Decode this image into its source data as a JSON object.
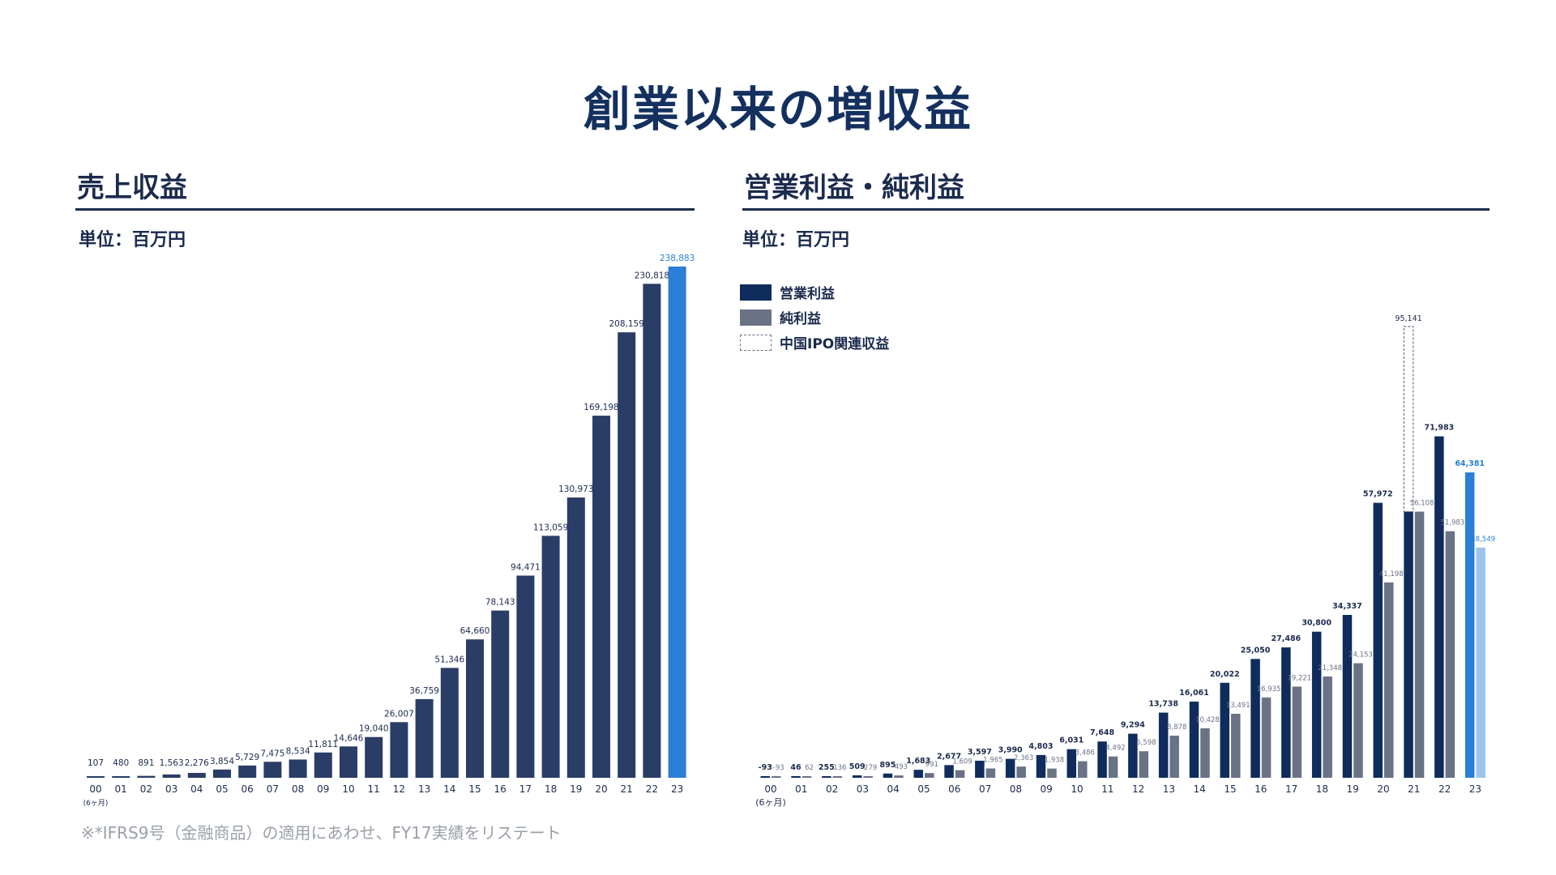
{
  "title": "創業以来の増収益",
  "left_panel": {
    "title": "売上収益",
    "unit": "単位：百万円"
  },
  "right_panel": {
    "title": "営業利益・純利益",
    "unit": "単位：百万円"
  },
  "legend": [
    {
      "label": "営業利益",
      "color": "#0f2c5c",
      "style": "solid"
    },
    {
      "label": "純利益",
      "color": "#6a7286",
      "style": "solid"
    },
    {
      "label": "中国IPO関連収益",
      "color": "#6a7286",
      "style": "dashed"
    }
  ],
  "footnote": "※*IFRS9号（金融商品）の適用にあわせ、FY17実績をリステート",
  "colors": {
    "navy": "#2a3d66",
    "op": "#0f2c5c",
    "net": "#6a7286",
    "highlight": "#2a7fd6",
    "highlight_light": "#9ec4ea"
  },
  "chart_data": [
    {
      "type": "bar",
      "title": "売上収益",
      "ylabel": "単位：百万円",
      "categories": [
        "00",
        "01",
        "02",
        "03",
        "04",
        "05",
        "06",
        "07",
        "08",
        "09",
        "10",
        "11",
        "12",
        "13",
        "14",
        "15",
        "16",
        "17",
        "18",
        "19",
        "20",
        "21",
        "22",
        "23"
      ],
      "first_category_note": "(6ヶ月)",
      "values": [
        107,
        480,
        891,
        1563,
        2276,
        3854,
        5729,
        7475,
        8534,
        11811,
        14646,
        19040,
        26007,
        36759,
        51346,
        64660,
        78143,
        94471,
        113059,
        130973,
        169198,
        208159,
        230818,
        238883
      ],
      "labels": [
        "107",
        "480",
        "891",
        "1,563",
        "2,276",
        "3,854",
        "5,729",
        "7,475",
        "8,534",
        "11,811",
        "14,646",
        "19,040",
        "26,007",
        "36,759",
        "51,346",
        "64,660",
        "78,143",
        "94,471",
        "113,059",
        "130,973",
        "169,198",
        "208,159",
        "230,818",
        "238,883"
      ],
      "highlight_index": 23,
      "ylim": [
        0,
        238883
      ]
    },
    {
      "type": "bar",
      "title": "営業利益・純利益",
      "ylabel": "単位：百万円",
      "categories": [
        "00",
        "01",
        "02",
        "03",
        "04",
        "05",
        "06",
        "07",
        "08",
        "09",
        "10",
        "11",
        "12",
        "13",
        "14",
        "15",
        "16",
        "17",
        "18",
        "19",
        "20",
        "21",
        "22",
        "23"
      ],
      "first_category_note": "(6ヶ月)",
      "series": [
        {
          "name": "営業利益",
          "values": [
            -93,
            46,
            255,
            509,
            895,
            1683,
            2677,
            3597,
            3990,
            4803,
            6031,
            7648,
            9294,
            13738,
            16061,
            20022,
            25050,
            27486,
            30800,
            34337,
            57972,
            56108,
            71983,
            64381
          ],
          "labels": [
            "-93",
            "46",
            "255",
            "509",
            "895",
            "1,683",
            "2,677",
            "3,597",
            "3,990",
            "4,803",
            "6,031",
            "7,648",
            "9,294",
            "13,738",
            "16,061",
            "20,022",
            "25,050",
            "27,486",
            "30,800",
            "34,337",
            "57,972",
            "",
            "71,983",
            "64,381"
          ]
        },
        {
          "name": "純利益",
          "values": [
            -93,
            62,
            136,
            279,
            493,
            991,
            1609,
            1965,
            2363,
            1938,
            3486,
            4492,
            5598,
            8878,
            10428,
            13491,
            16935,
            19221,
            21348,
            24153,
            41198,
            56108,
            51983,
            48549
          ],
          "labels": [
            "-93",
            "62",
            "136",
            "279",
            "493",
            "991",
            "1,609",
            "1,965",
            "2,363",
            "1,938",
            "3,486",
            "4,492",
            "5,598",
            "8,878",
            "10,428",
            "13,491",
            "16,935",
            "19,221",
            "21,348",
            "24,153",
            "41,198",
            "56,108",
            "51,983",
            "48,549"
          ]
        }
      ],
      "ipo_related": {
        "index": 21,
        "base": 56108,
        "total": 95141,
        "label": "95,141",
        "name": "中国IPO関連収益"
      },
      "highlight_index": 23,
      "ylim": [
        0,
        95141
      ]
    }
  ]
}
